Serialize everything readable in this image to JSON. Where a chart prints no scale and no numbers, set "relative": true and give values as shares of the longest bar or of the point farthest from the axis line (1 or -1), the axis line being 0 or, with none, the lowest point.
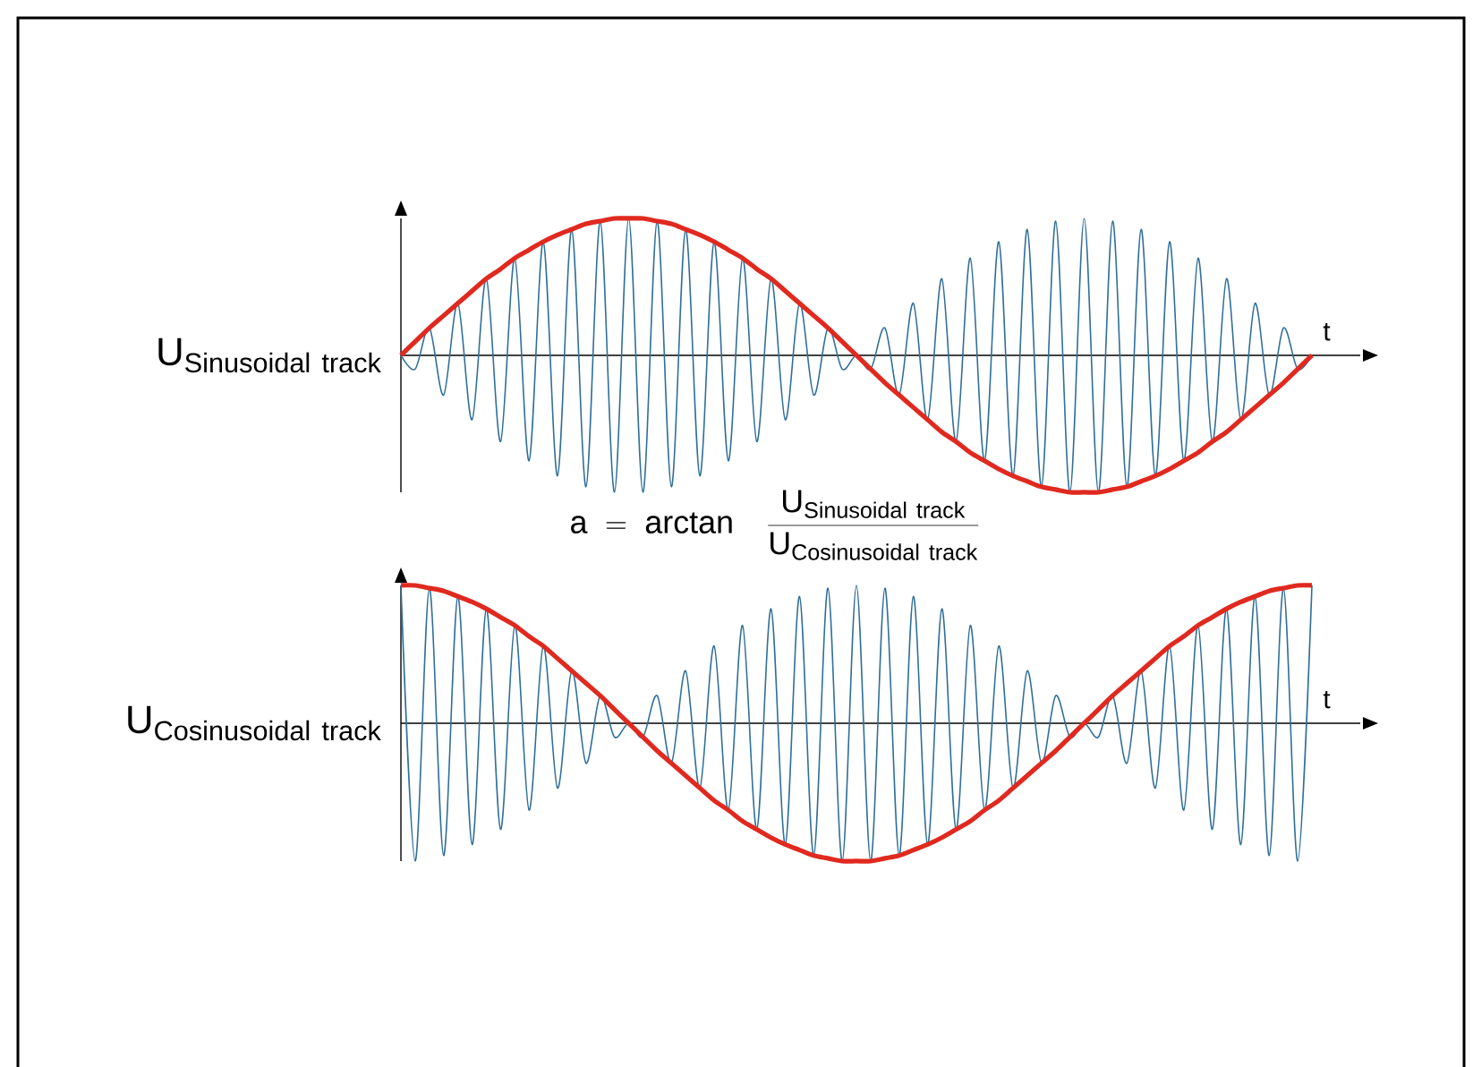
{
  "chart_data": [
    {
      "type": "line",
      "relative": true,
      "marker": "none",
      "ylabel": "\\mathrm{U}_{\\mathrm{Sinusoidal\\ track}}",
      "xlabel": "t",
      "annotations": [
        "\\mathrm{a\\ =\\ arctan}\\quad\\frac{\\mathrm{U}_{\\mathrm{Sinusoidal\\ track}}}{\\mathrm{U}_{\\mathrm{Cosinusoidal\\ track}}}"
      ],
      "categories": [
        null,
        null,
        null,
        null,
        null,
        null,
        null,
        null,
        null,
        null,
        null,
        null,
        null,
        null,
        null,
        null,
        null,
        null,
        null,
        null,
        null,
        null,
        null,
        null,
        null,
        null,
        null,
        null,
        null,
        null,
        null,
        null,
        null,
        null,
        null,
        null,
        null,
        null,
        null,
        null,
        null,
        null,
        null,
        null,
        null,
        null,
        null,
        null,
        null,
        null,
        null,
        null,
        null,
        null,
        null,
        null,
        null,
        null,
        null,
        null,
        null,
        null,
        null,
        null,
        null
      ],
      "series": [
        {
          "color": "#2f6f99",
          "values": [
            0,
            -0.1,
            0.2,
            -0.29,
            0.38,
            -0.47,
            0.56,
            -0.63,
            0.71,
            -0.77,
            0.83,
            -0.88,
            0.92,
            -0.96,
            0.98,
            -1,
            1,
            -1,
            0.98,
            -0.96,
            0.92,
            -0.88,
            0.83,
            -0.77,
            0.71,
            -0.63,
            0.56,
            -0.47,
            0.38,
            -0.29,
            0.2,
            -0.1,
            0,
            -0.1,
            0.2,
            -0.29,
            0.38,
            -0.47,
            0.56,
            -0.63,
            0.71,
            -0.77,
            0.83,
            -0.88,
            0.92,
            -0.96,
            0.98,
            -1,
            1,
            -1,
            0.98,
            -0.96,
            0.92,
            -0.88,
            0.83,
            -0.77,
            0.71,
            -0.63,
            0.56,
            -0.47,
            0.38,
            -0.29,
            0.2,
            -0.1,
            0
          ]
        },
        {
          "color": "#e0291f",
          "values": [
            0,
            0.1,
            0.2,
            0.29,
            0.38,
            0.47,
            0.56,
            0.63,
            0.71,
            0.77,
            0.83,
            0.88,
            0.92,
            0.96,
            0.98,
            1,
            1,
            1,
            0.98,
            0.96,
            0.92,
            0.88,
            0.83,
            0.77,
            0.71,
            0.63,
            0.56,
            0.47,
            0.38,
            0.29,
            0.2,
            0.1,
            0,
            -0.1,
            -0.2,
            -0.29,
            -0.38,
            -0.47,
            -0.56,
            -0.63,
            -0.71,
            -0.77,
            -0.83,
            -0.88,
            -0.92,
            -0.96,
            -0.98,
            -1,
            -1,
            -1,
            -0.98,
            -0.96,
            -0.92,
            -0.88,
            -0.83,
            -0.77,
            -0.71,
            -0.63,
            -0.56,
            -0.47,
            -0.38,
            -0.29,
            -0.2,
            -0.1,
            0
          ]
        }
      ]
    },
    {
      "type": "line",
      "relative": true,
      "marker": "none",
      "ylabel": "\\mathrm{U}_{\\mathrm{Cosinusoidal\\ track}}",
      "xlabel": "t",
      "categories": [
        null,
        null,
        null,
        null,
        null,
        null,
        null,
        null,
        null,
        null,
        null,
        null,
        null,
        null,
        null,
        null,
        null,
        null,
        null,
        null,
        null,
        null,
        null,
        null,
        null,
        null,
        null,
        null,
        null,
        null,
        null,
        null,
        null,
        null,
        null,
        null,
        null,
        null,
        null,
        null,
        null,
        null,
        null,
        null,
        null,
        null,
        null,
        null,
        null,
        null,
        null,
        null,
        null,
        null,
        null,
        null,
        null,
        null,
        null,
        null,
        null,
        null,
        null,
        null,
        null
      ],
      "series": [
        {
          "color": "#2f6f99",
          "values": [
            1,
            -1,
            0.98,
            -0.96,
            0.92,
            -0.88,
            0.83,
            -0.77,
            0.71,
            -0.63,
            0.56,
            -0.47,
            0.38,
            -0.29,
            0.2,
            -0.1,
            0,
            -0.1,
            0.2,
            -0.29,
            0.38,
            -0.47,
            0.56,
            -0.63,
            0.71,
            -0.77,
            0.83,
            -0.88,
            0.92,
            -0.96,
            0.98,
            -1,
            1,
            -1,
            0.98,
            -0.96,
            0.92,
            -0.88,
            0.83,
            -0.77,
            0.71,
            -0.63,
            0.56,
            -0.47,
            0.38,
            -0.29,
            0.2,
            -0.1,
            0,
            -0.1,
            0.2,
            -0.29,
            0.38,
            -0.47,
            0.56,
            -0.63,
            0.71,
            -0.77,
            0.83,
            -0.88,
            0.92,
            -0.96,
            0.98,
            -1,
            1
          ]
        },
        {
          "color": "#e0291f",
          "values": [
            1,
            1,
            0.98,
            0.96,
            0.92,
            0.88,
            0.83,
            0.77,
            0.71,
            0.63,
            0.56,
            0.47,
            0.38,
            0.29,
            0.2,
            0.1,
            0,
            -0.1,
            -0.2,
            -0.29,
            -0.38,
            -0.47,
            -0.56,
            -0.63,
            -0.71,
            -0.77,
            -0.83,
            -0.88,
            -0.92,
            -0.96,
            -0.98,
            -1,
            -1,
            -1,
            -0.98,
            -0.96,
            -0.92,
            -0.88,
            -0.83,
            -0.77,
            -0.71,
            -0.63,
            -0.56,
            -0.47,
            -0.38,
            -0.29,
            -0.2,
            -0.1,
            0,
            0.1,
            0.2,
            0.29,
            0.38,
            0.47,
            0.56,
            0.63,
            0.71,
            0.77,
            0.83,
            0.88,
            0.92,
            0.96,
            0.98,
            1,
            1
          ]
        }
      ]
    }
  ]
}
